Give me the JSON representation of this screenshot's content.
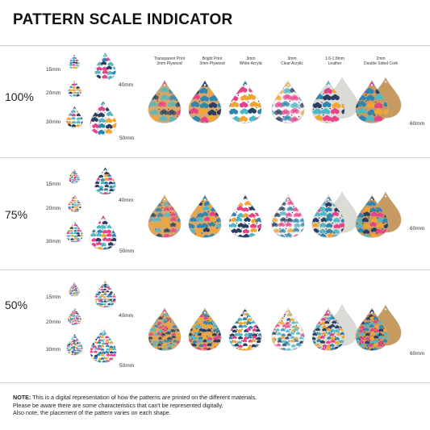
{
  "title": "PATTERN SCALE INDICATOR",
  "headers": [
    "Transparent Print\n3mm Plywood",
    "Bright Print\n3mm Plywood",
    "3mm\nWhite Acrylic",
    "3mm\nClear Acrylic",
    "1.6-1.8mm\nLeather",
    "2mm\nDouble Sided Cork"
  ],
  "sections": [
    {
      "scale": "100%",
      "sizes": [
        "15mm",
        "20mm",
        "30mm",
        "40mm",
        "50mm"
      ],
      "materials_size": "60mm"
    },
    {
      "scale": "75%",
      "sizes": [
        "15mm",
        "20mm",
        "30mm",
        "40mm",
        "50mm"
      ],
      "materials_size": "60mm"
    },
    {
      "scale": "50%",
      "sizes": [
        "15mm",
        "20mm",
        "30mm",
        "40mm",
        "50mm"
      ],
      "materials_size": "60mm"
    }
  ],
  "note": {
    "label": "NOTE:",
    "line1": " This is a digital representation of how the patterns are printed on the different materials.",
    "line2": "Please be aware there are some characteristics that can't be represented digitally.",
    "line3": "Also note, the placement of the pattern varies on each shape."
  },
  "colors": {
    "pink": "#e8438a",
    "orange": "#f2a531",
    "blue": "#2f86b0",
    "teal": "#4fb8c6",
    "navy": "#2a3f63",
    "wood": "#d9a868",
    "cork": "#c79a61",
    "leather": "#dcdcd6"
  }
}
